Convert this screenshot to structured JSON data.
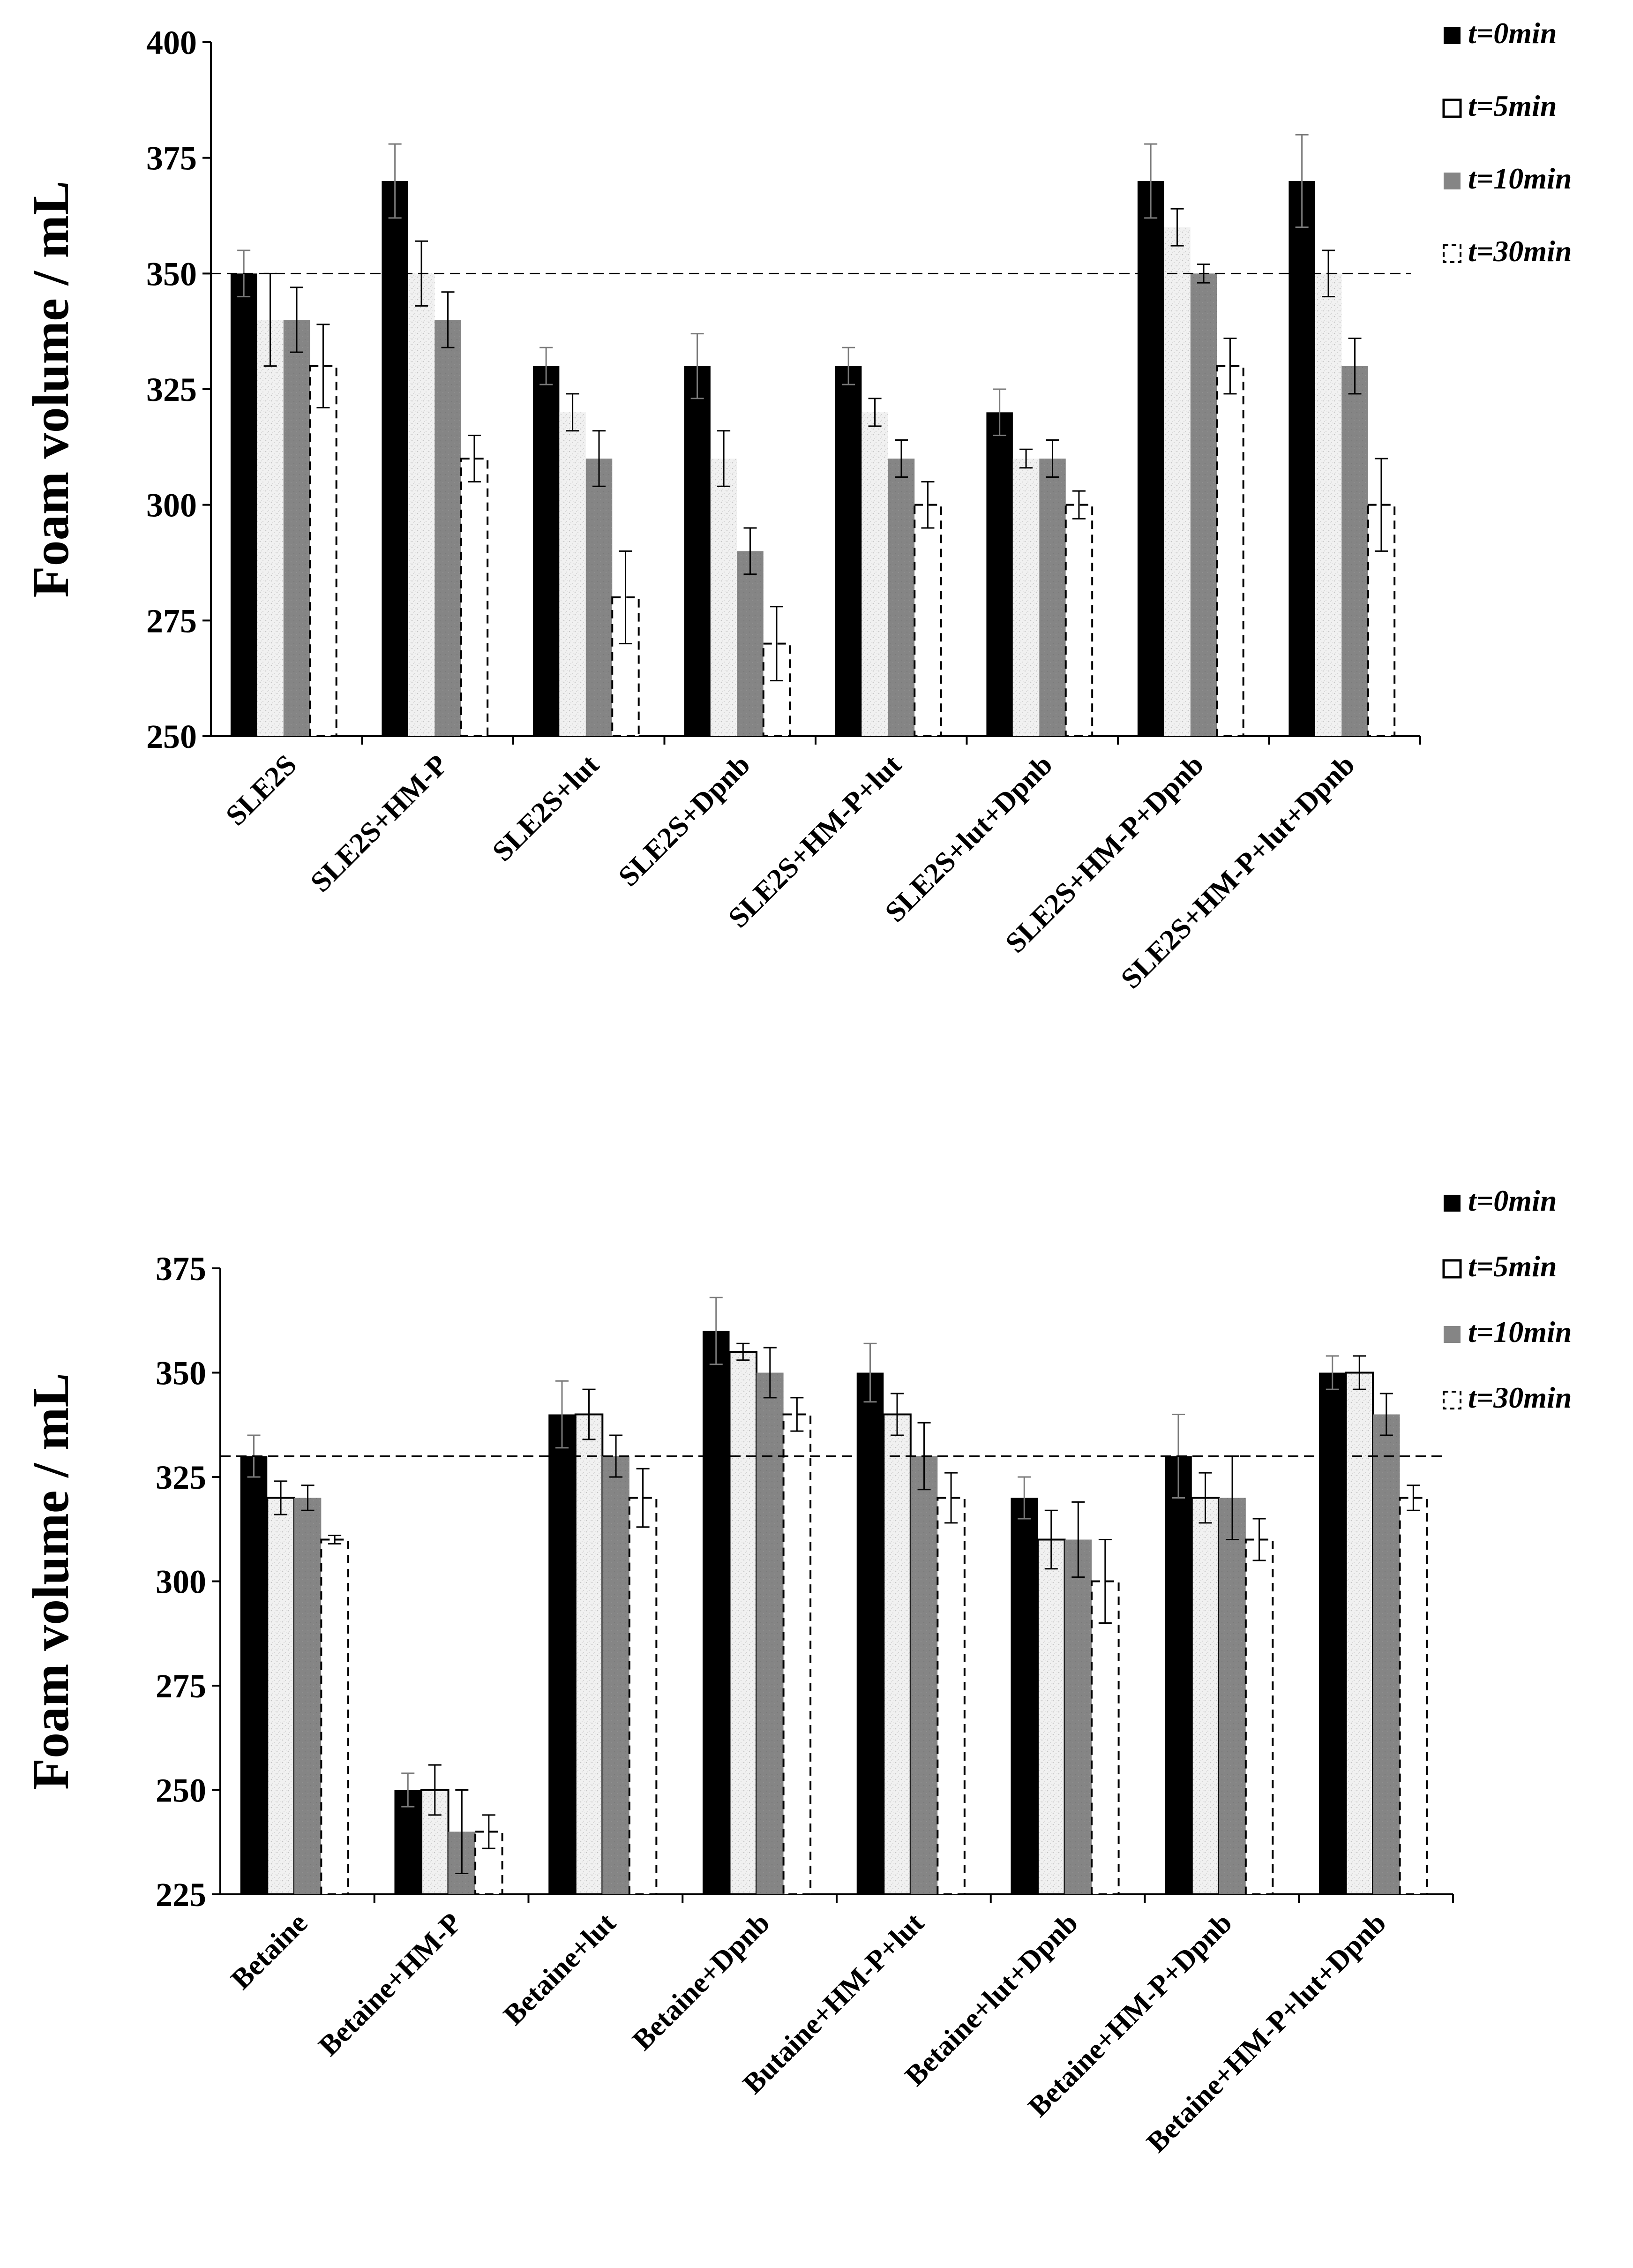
{
  "chart_data": [
    {
      "type": "bar",
      "title": "",
      "xlabel": "",
      "ylabel": "Foam volume / mL",
      "ylim": [
        250,
        400
      ],
      "yticks": [
        "250",
        "275",
        "300",
        "325",
        "350",
        "375",
        "400"
      ],
      "reference_line": 350,
      "grid": false,
      "legend_position": "top-right",
      "categories": [
        "SLE2S",
        "SLE2S+HM-P",
        "SLE2S+lut",
        "SLE2S+Dpnb",
        "SLE2S+HM-P+lut",
        "SLE2S+lut+Dpnb",
        "SLE2S+HM-P+Dpnb",
        "SLE2S+HM-P+lut+Dpnb"
      ],
      "series": [
        {
          "name": "t=0min",
          "style": "solid-black",
          "values": [
            350,
            370,
            330,
            330,
            330,
            320,
            370,
            370
          ],
          "errors": [
            5,
            8,
            4,
            7,
            4,
            5,
            8,
            10
          ]
        },
        {
          "name": "t=5min",
          "style": "light-speckle",
          "values": [
            340,
            350,
            320,
            310,
            320,
            310,
            360,
            350
          ],
          "errors": [
            10,
            7,
            4,
            6,
            3,
            2,
            4,
            5
          ]
        },
        {
          "name": "t=10min",
          "style": "gray",
          "values": [
            340,
            340,
            310,
            290,
            310,
            310,
            350,
            330
          ],
          "errors": [
            7,
            6,
            6,
            5,
            4,
            4,
            2,
            6
          ]
        },
        {
          "name": "t=30min",
          "style": "dashed-white",
          "values": [
            330,
            310,
            280,
            270,
            300,
            300,
            330,
            300
          ],
          "errors": [
            9,
            5,
            10,
            8,
            5,
            3,
            6,
            10
          ]
        }
      ]
    },
    {
      "type": "bar",
      "title": "",
      "xlabel": "",
      "ylabel": "Foam volume / mL",
      "ylim": [
        225,
        375
      ],
      "yticks": [
        "225",
        "250",
        "275",
        "300",
        "325",
        "350",
        "375"
      ],
      "reference_line": 330,
      "grid": false,
      "legend_position": "top-right",
      "categories": [
        "Betaine",
        "Betaine+HM-P",
        "Betaine+lut",
        "Betaine+Dpnb",
        "Butaine+HM-P+lut",
        "Betaine+lut+Dpnb",
        "Betaine+HM-P+Dpnb",
        "Betaine+HM-P+lut+Dpnb"
      ],
      "series": [
        {
          "name": "t=0min",
          "style": "solid-black",
          "values": [
            330,
            250,
            340,
            360,
            350,
            320,
            330,
            350
          ],
          "errors": [
            5,
            4,
            8,
            8,
            7,
            5,
            10,
            4
          ]
        },
        {
          "name": "t=5min",
          "style": "light-speckle",
          "values": [
            320,
            250,
            340,
            355,
            340,
            310,
            320,
            350
          ],
          "errors": [
            4,
            6,
            6,
            2,
            5,
            7,
            6,
            4
          ]
        },
        {
          "name": "t=10min",
          "style": "gray",
          "values": [
            320,
            240,
            330,
            350,
            330,
            310,
            320,
            340
          ],
          "errors": [
            3,
            10,
            5,
            6,
            8,
            9,
            10,
            5
          ]
        },
        {
          "name": "t=30min",
          "style": "dashed-white",
          "values": [
            310,
            240,
            320,
            340,
            320,
            300,
            310,
            320
          ],
          "errors": [
            1,
            4,
            7,
            4,
            6,
            10,
            5,
            3
          ]
        }
      ]
    }
  ]
}
